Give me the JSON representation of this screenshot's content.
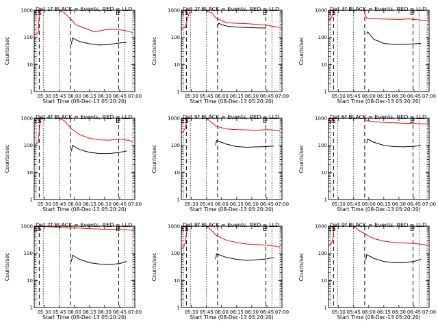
{
  "chart_data": [
    {
      "type": "line",
      "title": "Det 1f BLACK = Events, RED = LLD",
      "xlabel": "Start Time (08-Dec-13 05:20:20)",
      "ylabel": "Counts/sec",
      "yscale": "log",
      "ylim": [
        1,
        1000
      ],
      "ytick_labels": [
        "1",
        "10",
        "100",
        "1000"
      ],
      "xlim": [
        "05:20",
        "07:00"
      ],
      "xtick_labels": [
        "05:30",
        "05:45",
        "06:00",
        "06:15",
        "06:30",
        "06:45",
        "07:00"
      ],
      "markers": [
        "E",
        "S",
        "E"
      ],
      "series": [
        {
          "color": "#ff0000",
          "x": [
            "05:20",
            "05:22",
            "05:24",
            "05:25",
            "05:27",
            "05:31",
            "05:45",
            "05:50",
            "05:57",
            "06:01",
            "06:10",
            "06:20",
            "06:30",
            "06:40",
            "06:50",
            "06:58"
          ],
          "values": [
            130,
            130,
            150,
            800,
            1000,
            1000,
            1000,
            800,
            450,
            300,
            220,
            160,
            190,
            200,
            180,
            150
          ]
        },
        {
          "color": "#000000",
          "x": [
            "05:57",
            "05:58",
            "06:05",
            "06:15",
            "06:25",
            "06:35",
            "06:45",
            "06:52"
          ],
          "values": [
            55,
            95,
            70,
            58,
            52,
            55,
            62,
            65
          ]
        }
      ]
    },
    {
      "type": "line",
      "title": "Det 2f BLACK = Events, RED = LLD",
      "xlabel": "Start Time (08-Dec-13 05:20:20)",
      "ylabel": "Counts/sec",
      "yscale": "log",
      "ylim": [
        1,
        1000
      ],
      "ytick_labels": [
        "1",
        "10",
        "100",
        "1000"
      ],
      "xlim": [
        "05:20",
        "07:00"
      ],
      "xtick_labels": [
        "05:30",
        "05:45",
        "06:00",
        "06:15",
        "06:30",
        "06:45",
        "07:00"
      ],
      "markers": [
        "E",
        "S",
        "E"
      ],
      "series": [
        {
          "color": "#ff0000",
          "x": [
            "05:20",
            "05:24",
            "05:26",
            "05:29",
            "05:35",
            "05:44",
            "05:50",
            "05:55",
            "06:05",
            "06:15",
            "06:25",
            "06:35",
            "06:45",
            "06:55",
            "07:00"
          ],
          "values": [
            220,
            230,
            500,
            1000,
            1000,
            1000,
            800,
            500,
            350,
            330,
            320,
            300,
            280,
            240,
            230
          ]
        },
        {
          "color": "#000000",
          "x": [
            "05:56",
            "05:57",
            "06:05",
            "06:15",
            "06:25",
            "06:35",
            "06:44"
          ],
          "values": [
            250,
            330,
            260,
            240,
            230,
            225,
            220
          ]
        }
      ]
    },
    {
      "type": "line",
      "title": "Det 3f BLACK = Events, RED = LLD",
      "xlabel": "Start Time (08-Dec-13 05:20:20)",
      "ylabel": "Counts/sec",
      "yscale": "log",
      "ylim": [
        1,
        1000
      ],
      "ytick_labels": [
        "1",
        "10",
        "100",
        "1000"
      ],
      "xlim": [
        "05:20",
        "07:00"
      ],
      "xtick_labels": [
        "05:30",
        "05:45",
        "06:00",
        "06:15",
        "06:30",
        "06:45",
        "07:00"
      ],
      "markers": [
        "E",
        "S",
        "E"
      ],
      "series": [
        {
          "color": "#ff0000",
          "x": [
            "05:20",
            "05:22",
            "05:24",
            "05:27",
            "05:45",
            "05:55",
            "05:58",
            "06:10",
            "06:20",
            "06:30",
            "06:40",
            "06:50",
            "06:58"
          ],
          "values": [
            450,
            460,
            650,
            1000,
            1000,
            1000,
            500,
            480,
            470,
            460,
            480,
            440,
            420
          ]
        },
        {
          "color": "#000000",
          "x": [
            "05:58",
            "05:59",
            "06:05",
            "06:15",
            "06:25",
            "06:35",
            "06:45",
            "06:52"
          ],
          "values": [
            130,
            160,
            85,
            60,
            55,
            55,
            58,
            60
          ]
        }
      ]
    },
    {
      "type": "line",
      "title": "Det 4f BLACK = Events, RED = LLD",
      "xlabel": "Start Time (08-Dec-13 05:20:20)",
      "ylabel": "Counts/sec",
      "yscale": "log",
      "ylim": [
        1,
        1000
      ],
      "ytick_labels": [
        "1",
        "10",
        "100",
        "1000"
      ],
      "xlim": [
        "05:20",
        "07:00"
      ],
      "xtick_labels": [
        "05:30",
        "05:45",
        "06:00",
        "06:15",
        "06:30",
        "06:45",
        "07:00"
      ],
      "markers": [
        "E",
        "S",
        "E"
      ],
      "series": [
        {
          "color": "#ff0000",
          "x": [
            "05:20",
            "05:22",
            "05:24",
            "05:26",
            "05:30",
            "05:45",
            "05:50",
            "05:57",
            "06:05",
            "06:15",
            "06:25",
            "06:35",
            "06:45",
            "06:55",
            "06:58"
          ],
          "values": [
            110,
            110,
            130,
            900,
            1000,
            1000,
            800,
            400,
            250,
            180,
            160,
            155,
            170,
            150,
            130
          ]
        },
        {
          "color": "#000000",
          "x": [
            "05:57",
            "05:58",
            "06:05",
            "06:15",
            "06:25",
            "06:35",
            "06:45",
            "06:52"
          ],
          "values": [
            60,
            100,
            70,
            55,
            50,
            50,
            55,
            62
          ]
        }
      ]
    },
    {
      "type": "line",
      "title": "Det 5f BLACK = Events, RED = LLD",
      "xlabel": "Start Time (08-Dec-13 05:20:20)",
      "ylabel": "Counts/sec",
      "yscale": "log",
      "ylim": [
        1,
        1000
      ],
      "ytick_labels": [
        "1",
        "10",
        "100",
        "1000"
      ],
      "xlim": [
        "05:20",
        "07:00"
      ],
      "xtick_labels": [
        "05:30",
        "05:45",
        "06:00",
        "06:15",
        "06:30",
        "06:45",
        "07:00"
      ],
      "markers": [
        "E",
        "S",
        "E"
      ],
      "series": [
        {
          "color": "#ff0000",
          "x": [
            "05:20",
            "05:22",
            "05:24",
            "05:26",
            "05:45",
            "05:50",
            "05:55",
            "06:05",
            "06:15",
            "06:25",
            "06:35",
            "06:45",
            "06:55",
            "06:58"
          ],
          "values": [
            300,
            320,
            450,
            1000,
            1000,
            700,
            500,
            400,
            380,
            370,
            360,
            380,
            360,
            330
          ]
        },
        {
          "color": "#000000",
          "x": [
            "05:54",
            "05:55",
            "06:05",
            "06:15",
            "06:25",
            "06:35",
            "06:45",
            "06:52"
          ],
          "values": [
            100,
            150,
            110,
            90,
            85,
            88,
            90,
            95
          ]
        }
      ]
    },
    {
      "type": "line",
      "title": "Det 6f BLACK = Events, RED = LLD",
      "xlabel": "Start Time (08-Dec-13 05:20:20)",
      "ylabel": "Counts/sec",
      "yscale": "log",
      "ylim": [
        1,
        1000
      ],
      "ytick_labels": [
        "1",
        "10",
        "100",
        "1000"
      ],
      "xlim": [
        "05:20",
        "07:00"
      ],
      "xtick_labels": [
        "05:30",
        "05:45",
        "06:00",
        "06:15",
        "06:30",
        "06:45",
        "07:00"
      ],
      "markers": [
        "E",
        "S",
        "E"
      ],
      "series": [
        {
          "color": "#ff0000",
          "x": [
            "05:20",
            "05:22",
            "05:24",
            "05:27",
            "05:45",
            "05:55",
            "05:58",
            "06:05",
            "06:15",
            "06:25",
            "06:35",
            "06:45",
            "06:55",
            "07:00"
          ],
          "values": [
            680,
            700,
            850,
            1000,
            1000,
            1000,
            800,
            750,
            700,
            680,
            650,
            640,
            620,
            600
          ]
        },
        {
          "color": "#000000",
          "x": [
            "05:58",
            "05:59",
            "06:05",
            "06:15",
            "06:25",
            "06:35",
            "06:45",
            "06:52"
          ],
          "values": [
            120,
            170,
            130,
            100,
            90,
            88,
            92,
            100
          ]
        }
      ]
    },
    {
      "type": "line",
      "title": "Det 7f BLACK = Events, RED = LLD",
      "xlabel": "Start Time (08-Dec-13 05:20:20)",
      "ylabel": "Counts/sec",
      "yscale": "log",
      "ylim": [
        1,
        1000
      ],
      "ytick_labels": [
        "1",
        "10",
        "100",
        "1000"
      ],
      "xlim": [
        "05:20",
        "07:00"
      ],
      "xtick_labels": [
        "05:30",
        "05:45",
        "06:00",
        "06:15",
        "06:30",
        "06:45",
        "07:00"
      ],
      "markers": [
        "E",
        "S",
        "E"
      ],
      "series": [
        {
          "color": "#ff0000",
          "x": [
            "05:20",
            "05:22",
            "05:24",
            "05:26",
            "05:35",
            "05:45",
            "05:55",
            "06:05",
            "06:15",
            "06:25",
            "06:35",
            "06:45",
            "06:55",
            "06:58"
          ],
          "values": [
            650,
            680,
            800,
            1000,
            950,
            900,
            850,
            850,
            800,
            780,
            760,
            760,
            720,
            700
          ]
        },
        {
          "color": "#000000",
          "x": [
            "05:57",
            "05:58",
            "06:05",
            "06:15",
            "06:25",
            "06:35",
            "06:45",
            "06:52"
          ],
          "values": [
            50,
            85,
            60,
            45,
            40,
            38,
            42,
            50
          ]
        }
      ]
    },
    {
      "type": "line",
      "title": "Det 8f BLACK = Events, RED = LLD",
      "xlabel": "Start Time (08-Dec-13 05:20:20)",
      "ylabel": "Counts/sec",
      "yscale": "log",
      "ylim": [
        1,
        1000
      ],
      "ytick_labels": [
        "1",
        "10",
        "100",
        "1000"
      ],
      "xlim": [
        "05:20",
        "07:00"
      ],
      "xtick_labels": [
        "05:30",
        "05:45",
        "06:00",
        "06:15",
        "06:30",
        "06:45",
        "07:00"
      ],
      "markers": [
        "E",
        "S",
        "E"
      ],
      "series": [
        {
          "color": "#ff0000",
          "x": [
            "05:20",
            "05:22",
            "05:24",
            "05:26",
            "05:45",
            "05:50",
            "05:55",
            "06:05",
            "06:15",
            "06:25",
            "06:35",
            "06:45",
            "06:55",
            "06:58"
          ],
          "values": [
            150,
            160,
            250,
            1000,
            1000,
            700,
            450,
            300,
            250,
            220,
            210,
            200,
            180,
            170
          ]
        },
        {
          "color": "#000000",
          "x": [
            "05:54",
            "05:55",
            "06:05",
            "06:15",
            "06:25",
            "06:35",
            "06:45",
            "06:52"
          ],
          "values": [
            60,
            95,
            70,
            60,
            55,
            58,
            62,
            70
          ]
        }
      ]
    },
    {
      "type": "line",
      "title": "Det 9f BLACK = Events, RED = LLD",
      "xlabel": "Start Time (08-Dec-13 05:20:20)",
      "ylabel": "Counts/sec",
      "yscale": "log",
      "ylim": [
        1,
        1000
      ],
      "ytick_labels": [
        "1",
        "10",
        "100",
        "1000"
      ],
      "xlim": [
        "05:20",
        "07:00"
      ],
      "xtick_labels": [
        "05:30",
        "05:45",
        "06:00",
        "06:15",
        "06:30",
        "06:45",
        "07:00"
      ],
      "markers": [
        "E",
        "S",
        "E"
      ],
      "series": [
        {
          "color": "#ff0000",
          "x": [
            "05:20",
            "05:22",
            "05:24",
            "05:26",
            "05:45",
            "05:50",
            "05:57",
            "06:05",
            "06:15",
            "06:25",
            "06:35",
            "06:45",
            "06:55",
            "06:58"
          ],
          "values": [
            200,
            210,
            280,
            1000,
            1000,
            700,
            500,
            350,
            280,
            250,
            240,
            230,
            210,
            190
          ]
        },
        {
          "color": "#000000",
          "x": [
            "05:57",
            "05:58",
            "06:05",
            "06:15",
            "06:25",
            "06:35",
            "06:45",
            "06:52"
          ],
          "values": [
            55,
            90,
            65,
            50,
            45,
            45,
            50,
            60
          ]
        }
      ]
    }
  ]
}
